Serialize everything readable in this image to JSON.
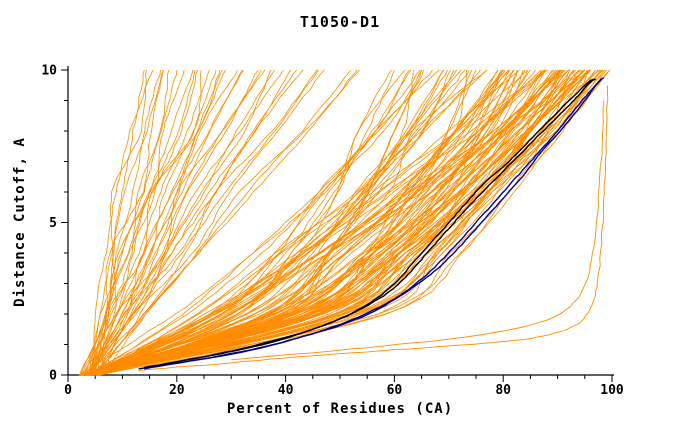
{
  "chart_data": {
    "type": "line",
    "title": "T1050-D1",
    "xlabel": "Percent of Residues (CA)",
    "ylabel": "Distance Cutoff, A",
    "xlim": [
      0,
      100
    ],
    "ylim": [
      0,
      10
    ],
    "x_ticks": [
      0,
      20,
      40,
      60,
      80,
      100
    ],
    "y_ticks": [
      0,
      5,
      10
    ],
    "grid": false,
    "legend": "none",
    "colors": {
      "models": "#ff8c00",
      "highlight_black": "#000000",
      "highlight_blue": "#000090",
      "axis": "#000000"
    },
    "cutoff_levels": [
      0,
      2,
      4,
      6,
      8,
      10
    ],
    "orange_models": [
      [
        4,
        6,
        8,
        10,
        12,
        14
      ],
      [
        4,
        7,
        9,
        12,
        14,
        17
      ],
      [
        4,
        7,
        10,
        14,
        17,
        20
      ],
      [
        3,
        7,
        11,
        15,
        19,
        23
      ],
      [
        4,
        8,
        13,
        17,
        22,
        26
      ],
      [
        4,
        9,
        14,
        19,
        24,
        29
      ],
      [
        4,
        10,
        15,
        21,
        26,
        32
      ],
      [
        4,
        10,
        16,
        22,
        29,
        35
      ],
      [
        5,
        12,
        18,
        25,
        31,
        38
      ],
      [
        4,
        12,
        19,
        27,
        34,
        42
      ],
      [
        4,
        12,
        21,
        29,
        38,
        46
      ],
      [
        5,
        14,
        24,
        33,
        43,
        52
      ],
      [
        4,
        31,
        41,
        49,
        55,
        60
      ],
      [
        4,
        27,
        38,
        47,
        56,
        63
      ],
      [
        4,
        39,
        48,
        55,
        60,
        65
      ],
      [
        4,
        21,
        34,
        46,
        57,
        67
      ],
      [
        4,
        33,
        45,
        54,
        62,
        69
      ],
      [
        4,
        37,
        48,
        57,
        65,
        71
      ],
      [
        4,
        30,
        44,
        55,
        64,
        73
      ],
      [
        4,
        44,
        56,
        63,
        70,
        75
      ],
      [
        4,
        24,
        39,
        53,
        65,
        77
      ],
      [
        4,
        38,
        51,
        62,
        71,
        79
      ],
      [
        4,
        41,
        54,
        64,
        73,
        80
      ],
      [
        4,
        33,
        48,
        61,
        71,
        81
      ],
      [
        4,
        48,
        61,
        69,
        76,
        82
      ],
      [
        4,
        26,
        42,
        57,
        70,
        83
      ],
      [
        4,
        40,
        55,
        66,
        76,
        84
      ],
      [
        4,
        43,
        58,
        68,
        77,
        85
      ],
      [
        4,
        35,
        51,
        64,
        76,
        86
      ],
      [
        4,
        51,
        64,
        73,
        81,
        87
      ],
      [
        4,
        27,
        44,
        60,
        74,
        88
      ],
      [
        4,
        42,
        58,
        70,
        80,
        89
      ],
      [
        4,
        46,
        61,
        72,
        82,
        90
      ],
      [
        4,
        37,
        54,
        67,
        79,
        90
      ],
      [
        4,
        54,
        67,
        77,
        85,
        91
      ],
      [
        4,
        28,
        46,
        63,
        78,
        92
      ],
      [
        4,
        43,
        60,
        72,
        83,
        92
      ],
      [
        4,
        47,
        63,
        75,
        85,
        93
      ],
      [
        4,
        38,
        56,
        70,
        83,
        94
      ],
      [
        4,
        55,
        69,
        79,
        87,
        94
      ],
      [
        4,
        29,
        48,
        65,
        80,
        95
      ],
      [
        4,
        45,
        62,
        75,
        85,
        95
      ],
      [
        4,
        49,
        65,
        77,
        87,
        96
      ],
      [
        4,
        39,
        57,
        72,
        85,
        96
      ],
      [
        4,
        57,
        72,
        82,
        90,
        97
      ],
      [
        4,
        46,
        63,
        76,
        87,
        97
      ],
      [
        4,
        50,
        66,
        79,
        89,
        98
      ],
      [
        4,
        43,
        61,
        76,
        88,
        99
      ]
    ],
    "outlier_models": [
      [
        [
          13,
          0.15
        ],
        [
          30,
          0.4
        ],
        [
          50,
          0.7
        ],
        [
          70,
          0.95
        ],
        [
          85,
          1.2
        ],
        [
          93,
          1.6
        ],
        [
          96,
          2.2
        ],
        [
          97.5,
          3.2
        ],
        [
          98.3,
          5.0
        ],
        [
          98.8,
          7.0
        ],
        [
          99.2,
          9.5
        ]
      ],
      [
        [
          30,
          0.5
        ],
        [
          55,
          0.9
        ],
        [
          75,
          1.3
        ],
        [
          88,
          1.8
        ],
        [
          94,
          2.6
        ],
        [
          96.5,
          4.0
        ],
        [
          97.8,
          6.5
        ],
        [
          98.5,
          9.0
        ]
      ]
    ],
    "black_curves": [
      [
        [
          13,
          0.2
        ],
        [
          25,
          0.6
        ],
        [
          35,
          1.0
        ],
        [
          45,
          1.5
        ],
        [
          52,
          2.0
        ],
        [
          58,
          2.6
        ],
        [
          62,
          3.2
        ],
        [
          66,
          4.0
        ],
        [
          70,
          4.8
        ],
        [
          74,
          5.6
        ],
        [
          79,
          6.5
        ],
        [
          84,
          7.4
        ],
        [
          89,
          8.3
        ],
        [
          93,
          9.0
        ],
        [
          96,
          9.6
        ],
        [
          97,
          9.7
        ]
      ],
      [
        [
          14,
          0.25
        ],
        [
          28,
          0.7
        ],
        [
          38,
          1.1
        ],
        [
          48,
          1.7
        ],
        [
          55,
          2.3
        ],
        [
          60,
          3.0
        ],
        [
          64,
          3.8
        ],
        [
          68,
          4.6
        ],
        [
          72,
          5.4
        ],
        [
          76,
          6.2
        ],
        [
          81,
          7.0
        ],
        [
          86,
          7.9
        ],
        [
          91,
          8.8
        ],
        [
          95,
          9.5
        ],
        [
          96.5,
          9.7
        ]
      ]
    ],
    "blue_curves": [
      [
        [
          14,
          0.2
        ],
        [
          30,
          0.7
        ],
        [
          42,
          1.2
        ],
        [
          52,
          1.8
        ],
        [
          60,
          2.5
        ],
        [
          66,
          3.3
        ],
        [
          71,
          4.2
        ],
        [
          76,
          5.2
        ],
        [
          81,
          6.2
        ],
        [
          86,
          7.2
        ],
        [
          90,
          8.0
        ],
        [
          94,
          8.9
        ],
        [
          97,
          9.5
        ],
        [
          98,
          9.7
        ]
      ],
      [
        [
          15,
          0.25
        ],
        [
          32,
          0.75
        ],
        [
          44,
          1.3
        ],
        [
          54,
          1.9
        ],
        [
          62,
          2.7
        ],
        [
          68,
          3.5
        ],
        [
          73,
          4.4
        ],
        [
          78,
          5.4
        ],
        [
          83,
          6.4
        ],
        [
          87,
          7.3
        ],
        [
          91,
          8.1
        ],
        [
          95,
          9.0
        ],
        [
          97.5,
          9.6
        ],
        [
          98.5,
          9.75
        ]
      ]
    ],
    "density_copies": 3
  }
}
